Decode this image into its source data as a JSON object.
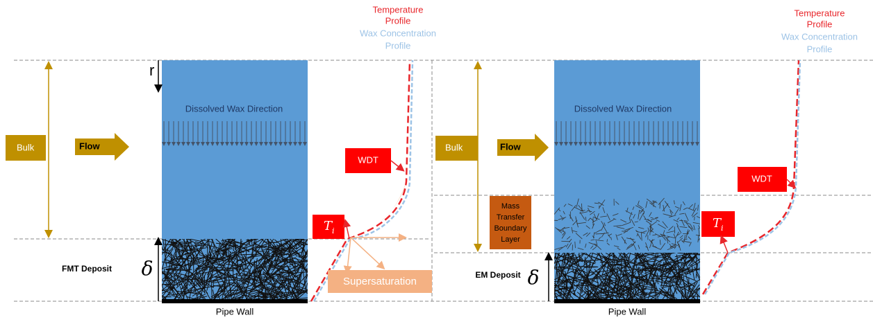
{
  "panels": [
    {
      "temperature_profile": [
        "Temperature",
        "Profile"
      ],
      "wax_concentration_profile": [
        "Wax Concentration",
        "Profile"
      ],
      "radius": "r",
      "dissolved_wax_direction": "Dissolved Wax Direction",
      "bulk": "Bulk",
      "flow": "Flow",
      "wdt": "WDT",
      "ti": {
        "main": "T",
        "sub": "i"
      },
      "deposit": "FMT Deposit",
      "delta": "δ",
      "supersaturation": "Supersaturation",
      "pipe_wall": "Pipe Wall"
    },
    {
      "temperature_profile": [
        "Temperature",
        "Profile"
      ],
      "wax_concentration_profile": [
        "Wax Concentration",
        "Profile"
      ],
      "dissolved_wax_direction": "Dissolved Wax Direction",
      "bulk": "Bulk",
      "flow": "Flow",
      "wdt": "WDT",
      "ti": {
        "main": "T",
        "sub": "i"
      },
      "boundary_layer": [
        "Mass",
        "Transfer",
        "Boundary",
        "Layer"
      ],
      "deposit": "EM Deposit",
      "delta": "δ",
      "pipe_wall": "Pipe Wall"
    }
  ]
}
